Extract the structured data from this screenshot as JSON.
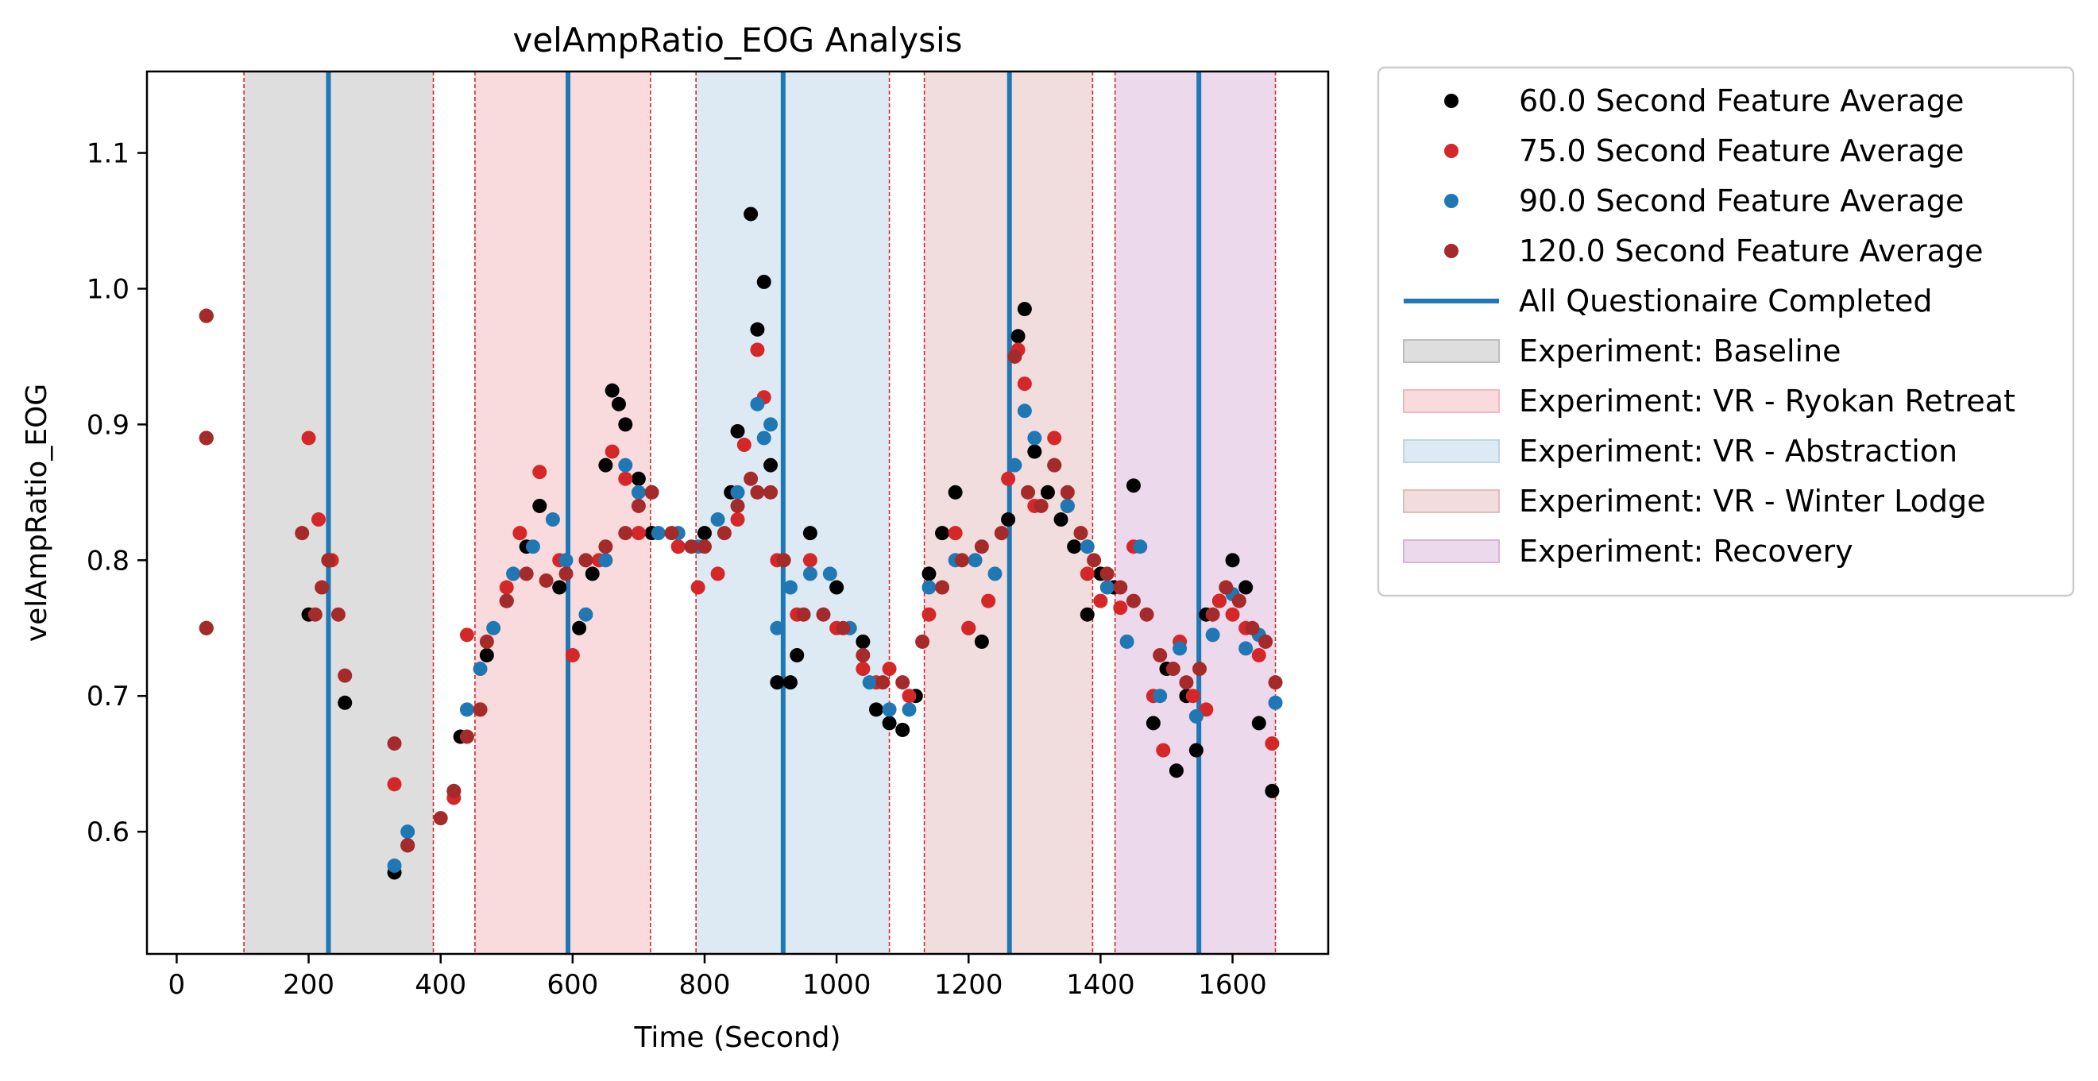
{
  "chart_data": {
    "type": "scatter",
    "title": "velAmpRatio_EOG Analysis",
    "xlabel": "Time (Second)",
    "ylabel": "velAmpRatio_EOG",
    "xlim": [
      -45,
      1745
    ],
    "ylim": [
      0.51,
      1.16
    ],
    "xticks": [
      0,
      200,
      400,
      600,
      800,
      1000,
      1200,
      1400,
      1600
    ],
    "yticks": [
      0.6,
      0.7,
      0.8,
      0.9,
      1.0,
      1.1
    ],
    "xtick_labels": [
      "0",
      "200",
      "400",
      "600",
      "800",
      "1000",
      "1200",
      "1400",
      "1600"
    ],
    "ytick_labels": [
      "0.6",
      "0.7",
      "0.8",
      "0.9",
      "1.0",
      "1.1"
    ],
    "grid": false,
    "legend_position": "outside-right",
    "experiments": [
      {
        "name": "Experiment: Baseline",
        "start": 102,
        "end": 389,
        "color": "#bdbdbd"
      },
      {
        "name": "Experiment: VR - Ryokan Retreat",
        "start": 452,
        "end": 718,
        "color": "#f4b7bc"
      },
      {
        "name": "Experiment: VR - Abstraction",
        "start": 787,
        "end": 1080,
        "color": "#bcd5ea"
      },
      {
        "name": "Experiment: VR - Winter Lodge",
        "start": 1133,
        "end": 1388,
        "color": "#e3bcbc"
      },
      {
        "name": "Experiment: Recovery",
        "start": 1422,
        "end": 1665,
        "color": "#d9b3d9"
      }
    ],
    "questionnaires": {
      "name": "All Questionaire Completed",
      "color": "#1f77b4",
      "x": [
        230,
        593,
        919,
        1262,
        1549
      ]
    },
    "boundary_color": "#d62728",
    "series": [
      {
        "name": "60.0 Second Feature Average",
        "color": "#000000",
        "points": [
          [
            45,
            0.98
          ],
          [
            45,
            0.89
          ],
          [
            45,
            0.75
          ],
          [
            200,
            0.76
          ],
          [
            230,
            0.8
          ],
          [
            255,
            0.695
          ],
          [
            330,
            0.57
          ],
          [
            350,
            0.59
          ],
          [
            430,
            0.67
          ],
          [
            470,
            0.73
          ],
          [
            500,
            0.77
          ],
          [
            530,
            0.81
          ],
          [
            550,
            0.84
          ],
          [
            580,
            0.78
          ],
          [
            610,
            0.75
          ],
          [
            630,
            0.79
          ],
          [
            650,
            0.87
          ],
          [
            660,
            0.925
          ],
          [
            670,
            0.915
          ],
          [
            680,
            0.9
          ],
          [
            700,
            0.86
          ],
          [
            720,
            0.82
          ],
          [
            760,
            0.81
          ],
          [
            800,
            0.82
          ],
          [
            840,
            0.85
          ],
          [
            850,
            0.895
          ],
          [
            870,
            1.055
          ],
          [
            880,
            0.97
          ],
          [
            890,
            1.005
          ],
          [
            900,
            0.87
          ],
          [
            910,
            0.71
          ],
          [
            930,
            0.71
          ],
          [
            940,
            0.73
          ],
          [
            960,
            0.82
          ],
          [
            1000,
            0.78
          ],
          [
            1040,
            0.74
          ],
          [
            1060,
            0.69
          ],
          [
            1080,
            0.68
          ],
          [
            1100,
            0.675
          ],
          [
            1120,
            0.7
          ],
          [
            1140,
            0.79
          ],
          [
            1160,
            0.82
          ],
          [
            1180,
            0.85
          ],
          [
            1200,
            0.75
          ],
          [
            1220,
            0.74
          ],
          [
            1260,
            0.83
          ],
          [
            1275,
            0.965
          ],
          [
            1285,
            0.985
          ],
          [
            1300,
            0.88
          ],
          [
            1320,
            0.85
          ],
          [
            1340,
            0.83
          ],
          [
            1360,
            0.81
          ],
          [
            1380,
            0.76
          ],
          [
            1400,
            0.79
          ],
          [
            1420,
            0.78
          ],
          [
            1450,
            0.855
          ],
          [
            1480,
            0.68
          ],
          [
            1500,
            0.72
          ],
          [
            1515,
            0.645
          ],
          [
            1530,
            0.7
          ],
          [
            1545,
            0.66
          ],
          [
            1560,
            0.76
          ],
          [
            1580,
            0.77
          ],
          [
            1600,
            0.8
          ],
          [
            1620,
            0.78
          ],
          [
            1640,
            0.68
          ],
          [
            1660,
            0.63
          ]
        ]
      },
      {
        "name": "75.0 Second Feature Average",
        "color": "#d62728",
        "points": [
          [
            45,
            0.98
          ],
          [
            200,
            0.89
          ],
          [
            215,
            0.83
          ],
          [
            235,
            0.8
          ],
          [
            330,
            0.635
          ],
          [
            420,
            0.625
          ],
          [
            440,
            0.745
          ],
          [
            460,
            0.69
          ],
          [
            500,
            0.78
          ],
          [
            520,
            0.82
          ],
          [
            550,
            0.865
          ],
          [
            580,
            0.8
          ],
          [
            600,
            0.73
          ],
          [
            640,
            0.8
          ],
          [
            660,
            0.88
          ],
          [
            680,
            0.86
          ],
          [
            700,
            0.82
          ],
          [
            720,
            0.85
          ],
          [
            760,
            0.81
          ],
          [
            790,
            0.78
          ],
          [
            820,
            0.79
          ],
          [
            850,
            0.83
          ],
          [
            860,
            0.885
          ],
          [
            880,
            0.955
          ],
          [
            890,
            0.92
          ],
          [
            910,
            0.8
          ],
          [
            940,
            0.76
          ],
          [
            960,
            0.8
          ],
          [
            1000,
            0.75
          ],
          [
            1040,
            0.72
          ],
          [
            1060,
            0.71
          ],
          [
            1080,
            0.72
          ],
          [
            1110,
            0.7
          ],
          [
            1140,
            0.76
          ],
          [
            1180,
            0.82
          ],
          [
            1200,
            0.75
          ],
          [
            1230,
            0.77
          ],
          [
            1260,
            0.86
          ],
          [
            1275,
            0.955
          ],
          [
            1285,
            0.93
          ],
          [
            1300,
            0.84
          ],
          [
            1330,
            0.89
          ],
          [
            1350,
            0.84
          ],
          [
            1380,
            0.79
          ],
          [
            1400,
            0.77
          ],
          [
            1430,
            0.765
          ],
          [
            1450,
            0.81
          ],
          [
            1480,
            0.7
          ],
          [
            1495,
            0.66
          ],
          [
            1520,
            0.74
          ],
          [
            1540,
            0.7
          ],
          [
            1560,
            0.69
          ],
          [
            1580,
            0.77
          ],
          [
            1600,
            0.76
          ],
          [
            1620,
            0.75
          ],
          [
            1640,
            0.73
          ],
          [
            1660,
            0.665
          ]
        ]
      },
      {
        "name": "90.0 Second Feature Average",
        "color": "#1f77b4",
        "points": [
          [
            330,
            0.575
          ],
          [
            350,
            0.6
          ],
          [
            420,
            0.63
          ],
          [
            440,
            0.69
          ],
          [
            460,
            0.72
          ],
          [
            480,
            0.75
          ],
          [
            510,
            0.79
          ],
          [
            540,
            0.81
          ],
          [
            570,
            0.83
          ],
          [
            590,
            0.8
          ],
          [
            620,
            0.76
          ],
          [
            650,
            0.8
          ],
          [
            680,
            0.87
          ],
          [
            700,
            0.85
          ],
          [
            730,
            0.82
          ],
          [
            760,
            0.82
          ],
          [
            790,
            0.81
          ],
          [
            820,
            0.83
          ],
          [
            850,
            0.85
          ],
          [
            880,
            0.915
          ],
          [
            890,
            0.89
          ],
          [
            900,
            0.9
          ],
          [
            910,
            0.75
          ],
          [
            930,
            0.78
          ],
          [
            960,
            0.79
          ],
          [
            990,
            0.79
          ],
          [
            1020,
            0.75
          ],
          [
            1050,
            0.71
          ],
          [
            1080,
            0.69
          ],
          [
            1110,
            0.69
          ],
          [
            1140,
            0.78
          ],
          [
            1180,
            0.8
          ],
          [
            1210,
            0.8
          ],
          [
            1240,
            0.79
          ],
          [
            1270,
            0.87
          ],
          [
            1285,
            0.91
          ],
          [
            1300,
            0.89
          ],
          [
            1330,
            0.87
          ],
          [
            1350,
            0.84
          ],
          [
            1380,
            0.81
          ],
          [
            1410,
            0.78
          ],
          [
            1440,
            0.74
          ],
          [
            1460,
            0.81
          ],
          [
            1490,
            0.7
          ],
          [
            1520,
            0.735
          ],
          [
            1545,
            0.685
          ],
          [
            1570,
            0.745
          ],
          [
            1600,
            0.775
          ],
          [
            1620,
            0.735
          ],
          [
            1640,
            0.745
          ],
          [
            1665,
            0.695
          ]
        ]
      },
      {
        "name": "120.0 Second Feature Average",
        "color": "#a52a2a",
        "points": [
          [
            45,
            0.98
          ],
          [
            45,
            0.89
          ],
          [
            45,
            0.75
          ],
          [
            190,
            0.82
          ],
          [
            210,
            0.76
          ],
          [
            220,
            0.78
          ],
          [
            230,
            0.8
          ],
          [
            245,
            0.76
          ],
          [
            255,
            0.715
          ],
          [
            330,
            0.665
          ],
          [
            350,
            0.59
          ],
          [
            400,
            0.61
          ],
          [
            420,
            0.63
          ],
          [
            440,
            0.67
          ],
          [
            460,
            0.69
          ],
          [
            470,
            0.74
          ],
          [
            500,
            0.77
          ],
          [
            530,
            0.79
          ],
          [
            560,
            0.785
          ],
          [
            590,
            0.79
          ],
          [
            620,
            0.8
          ],
          [
            650,
            0.81
          ],
          [
            680,
            0.82
          ],
          [
            700,
            0.84
          ],
          [
            720,
            0.85
          ],
          [
            750,
            0.82
          ],
          [
            780,
            0.81
          ],
          [
            800,
            0.81
          ],
          [
            830,
            0.82
          ],
          [
            850,
            0.84
          ],
          [
            870,
            0.86
          ],
          [
            880,
            0.85
          ],
          [
            900,
            0.85
          ],
          [
            920,
            0.8
          ],
          [
            950,
            0.76
          ],
          [
            980,
            0.76
          ],
          [
            1010,
            0.75
          ],
          [
            1040,
            0.73
          ],
          [
            1070,
            0.71
          ],
          [
            1100,
            0.71
          ],
          [
            1130,
            0.74
          ],
          [
            1160,
            0.78
          ],
          [
            1190,
            0.8
          ],
          [
            1220,
            0.81
          ],
          [
            1250,
            0.82
          ],
          [
            1270,
            0.95
          ],
          [
            1290,
            0.85
          ],
          [
            1310,
            0.84
          ],
          [
            1330,
            0.87
          ],
          [
            1350,
            0.85
          ],
          [
            1370,
            0.82
          ],
          [
            1390,
            0.8
          ],
          [
            1410,
            0.79
          ],
          [
            1430,
            0.78
          ],
          [
            1450,
            0.77
          ],
          [
            1470,
            0.76
          ],
          [
            1490,
            0.73
          ],
          [
            1510,
            0.72
          ],
          [
            1530,
            0.71
          ],
          [
            1550,
            0.72
          ],
          [
            1570,
            0.76
          ],
          [
            1590,
            0.78
          ],
          [
            1610,
            0.77
          ],
          [
            1630,
            0.75
          ],
          [
            1650,
            0.74
          ],
          [
            1665,
            0.71
          ]
        ]
      }
    ]
  }
}
